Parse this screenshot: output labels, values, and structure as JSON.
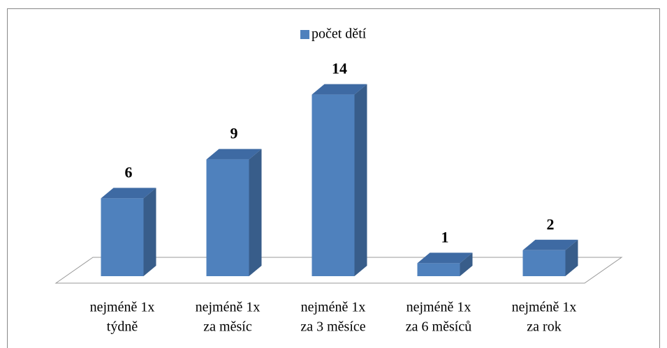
{
  "chart_data": {
    "type": "bar3d",
    "categories": [
      [
        "nejméně 1x",
        "týdně"
      ],
      [
        "nejméně 1x",
        "za měsíc"
      ],
      [
        "nejméně 1x",
        "za 3 měsíce"
      ],
      [
        "nejméně 1x",
        "za 6 měsíců"
      ],
      [
        "nejméně 1x",
        "za rok"
      ]
    ],
    "series": [
      {
        "name": "počet dětí",
        "color": "#4f81bd",
        "values": [
          6,
          9,
          14,
          1,
          2
        ]
      }
    ],
    "legend": "top"
  }
}
